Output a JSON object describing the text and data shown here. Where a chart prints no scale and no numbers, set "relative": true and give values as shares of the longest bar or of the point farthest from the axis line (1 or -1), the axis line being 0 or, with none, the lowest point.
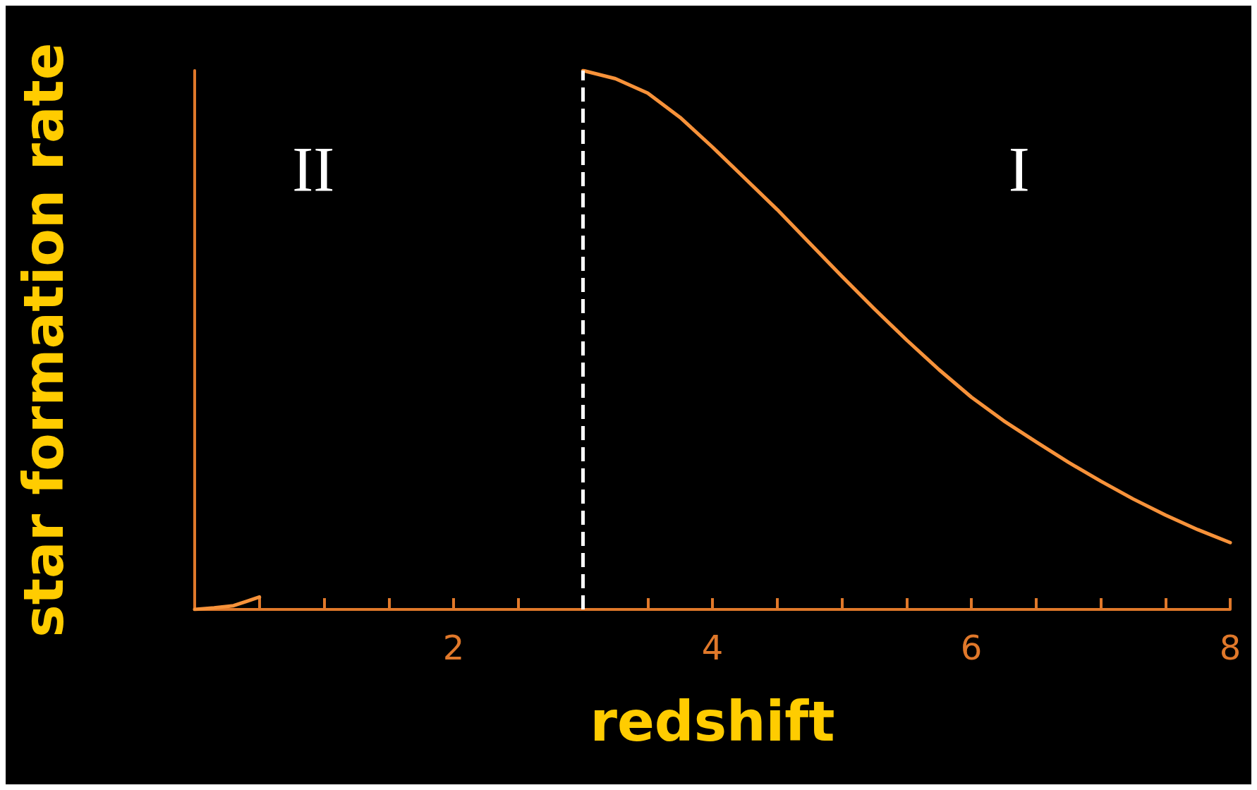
{
  "chart_data": {
    "type": "line",
    "xlabel": "redshift",
    "ylabel": "star formation rate",
    "relative": true,
    "xlim": [
      0,
      8
    ],
    "xticks": [
      {
        "value": 0,
        "label": null
      },
      {
        "value": 0.5,
        "label": null
      },
      {
        "value": 1,
        "label": null
      },
      {
        "value": 1.5,
        "label": null
      },
      2,
      {
        "value": 2.5,
        "label": null
      },
      {
        "value": 3,
        "label": null
      },
      {
        "value": 3.5,
        "label": null
      },
      4,
      {
        "value": 4.5,
        "label": null
      },
      {
        "value": 5,
        "label": null
      },
      {
        "value": 5.5,
        "label": null
      },
      6,
      {
        "value": 6.5,
        "label": null
      },
      {
        "value": 7,
        "label": null
      },
      {
        "value": 7.5,
        "label": null
      },
      8
    ],
    "series": [
      {
        "color": "#f7923a",
        "x": [
          0,
          0.15,
          0.3,
          0.4,
          0.5
        ],
        "values": [
          0,
          0.003,
          0.007,
          0.015,
          0.023
        ]
      },
      {
        "color": "#f7923a",
        "x": [
          3,
          3.25,
          3.5,
          3.75,
          4,
          4.25,
          4.5,
          4.75,
          5,
          5.25,
          5.5,
          5.75,
          6,
          6.25,
          6.5,
          6.75,
          7,
          7.25,
          7.5,
          7.75,
          8
        ],
        "values": [
          1,
          0.985,
          0.958,
          0.913,
          0.858,
          0.8,
          0.742,
          0.68,
          0.618,
          0.558,
          0.5,
          0.445,
          0.394,
          0.35,
          0.311,
          0.273,
          0.238,
          0.205,
          0.175,
          0.148,
          0.124
        ]
      }
    ],
    "ref_lines": [
      {
        "axis": "x",
        "value": 3,
        "color": "#ffffff",
        "line_style": "dashed"
      }
    ],
    "annotations": [
      "II",
      "I"
    ],
    "grid": false,
    "marker": "none",
    "line_style": "solid"
  }
}
